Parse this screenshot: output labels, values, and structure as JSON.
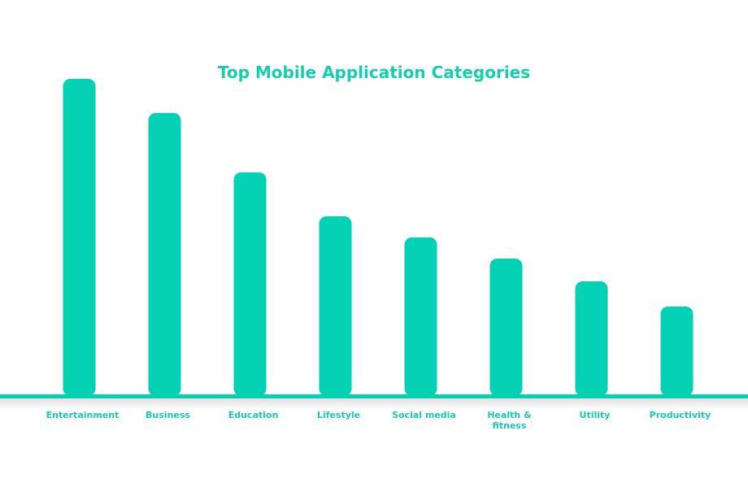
{
  "chart_data": {
    "type": "bar",
    "title": "Top Mobile Application Categories",
    "categories": [
      "Entertainment",
      "Business",
      "Education",
      "Lifestyle",
      "Social media",
      "Health & fitness",
      "Utility",
      "Productivity"
    ],
    "values": [
      390,
      348,
      275,
      221,
      195,
      169,
      141,
      110
    ],
    "color": "#03d1b3"
  }
}
